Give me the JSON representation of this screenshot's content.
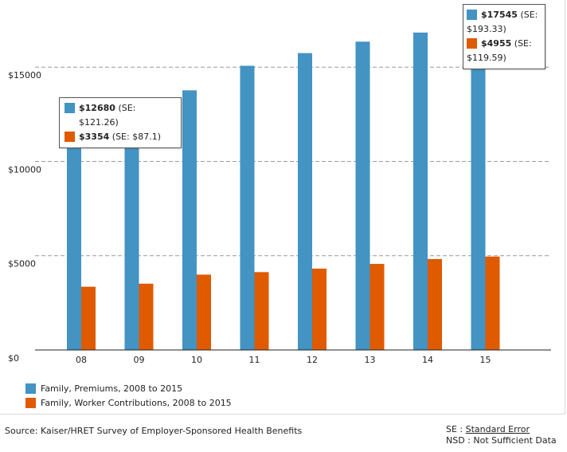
{
  "chart_data": {
    "type": "bar",
    "categories": [
      "08",
      "09",
      "10",
      "11",
      "12",
      "13",
      "14",
      "15"
    ],
    "series": [
      {
        "name": "Family, Premiums, 2008 to 2015",
        "values": [
          12680,
          13375,
          13770,
          15073,
          15745,
          16351,
          16834,
          17545
        ],
        "color": "#4393c3"
      },
      {
        "name": "Family, Worker Contributions, 2008 to 2015",
        "values": [
          3354,
          3515,
          3997,
          4129,
          4316,
          4565,
          4823,
          4955
        ],
        "color": "#e05a00"
      }
    ],
    "yticks": [
      "$0",
      "$5000",
      "$10000",
      "$15000"
    ],
    "ylim": [
      0,
      17800
    ],
    "grid": true,
    "legend_position": "bottom-left"
  },
  "tooltips": [
    {
      "premium": "$12680",
      "premium_se": "(SE: $121.26)",
      "contribution": "$3354",
      "contribution_se": "(SE: $87.1)"
    },
    {
      "premium": "$17545",
      "premium_se_a": "(SE:",
      "premium_se_b": "$193.33)",
      "contribution": "$4955",
      "contribution_se_a": "(SE:",
      "contribution_se_b": "$119.59)"
    }
  ],
  "footer": {
    "source": "Source: Kaiser/HRET Survey of Employer-Sponsored Health Benefits",
    "se_prefix": "SE : ",
    "se_link": "Standard Error",
    "nsd": "NSD : Not Sufficient Data"
  }
}
